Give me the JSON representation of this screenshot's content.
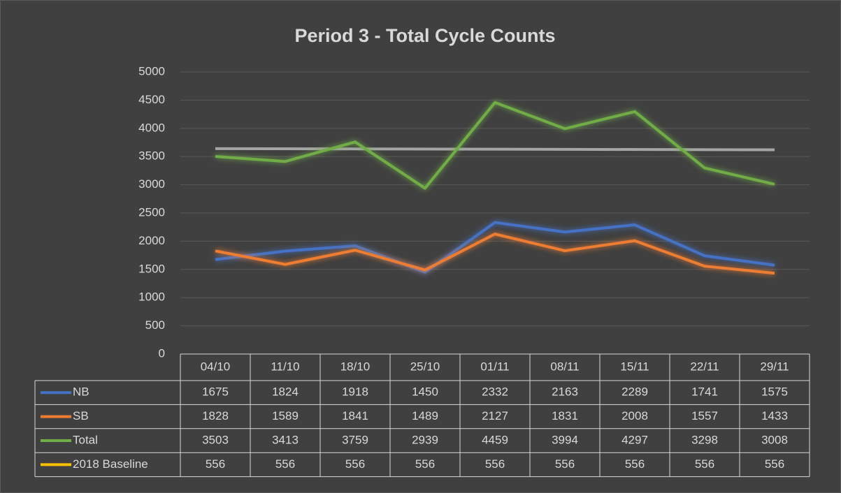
{
  "chart_data": {
    "type": "line",
    "title": "Period 3 - Total Cycle Counts",
    "categories": [
      "04/10",
      "11/10",
      "18/10",
      "25/10",
      "01/11",
      "08/11",
      "15/11",
      "22/11",
      "29/11"
    ],
    "series": [
      {
        "name": "NB",
        "color": "#4472c4",
        "values": [
          1675,
          1824,
          1918,
          1450,
          2332,
          2163,
          2289,
          1741,
          1575
        ]
      },
      {
        "name": "SB",
        "color": "#ed7d31",
        "values": [
          1828,
          1589,
          1841,
          1489,
          2127,
          1831,
          2008,
          1557,
          1433
        ]
      },
      {
        "name": "Total",
        "color": "#70ad47",
        "values": [
          3503,
          3413,
          3759,
          2939,
          4459,
          3994,
          4297,
          3298,
          3008
        ]
      },
      {
        "name": "2018 Baseline",
        "color": "#ffc000",
        "values": [
          556,
          556,
          556,
          556,
          556,
          556,
          556,
          556,
          556
        ]
      }
    ],
    "trendline": {
      "color": "#a5a5a5",
      "values": [
        3640,
        3620
      ]
    },
    "ylim": [
      0,
      5000
    ],
    "yticks": [
      0,
      500,
      1000,
      1500,
      2000,
      2500,
      3000,
      3500,
      4000,
      4500,
      5000
    ],
    "grid": true,
    "data_table": true
  }
}
